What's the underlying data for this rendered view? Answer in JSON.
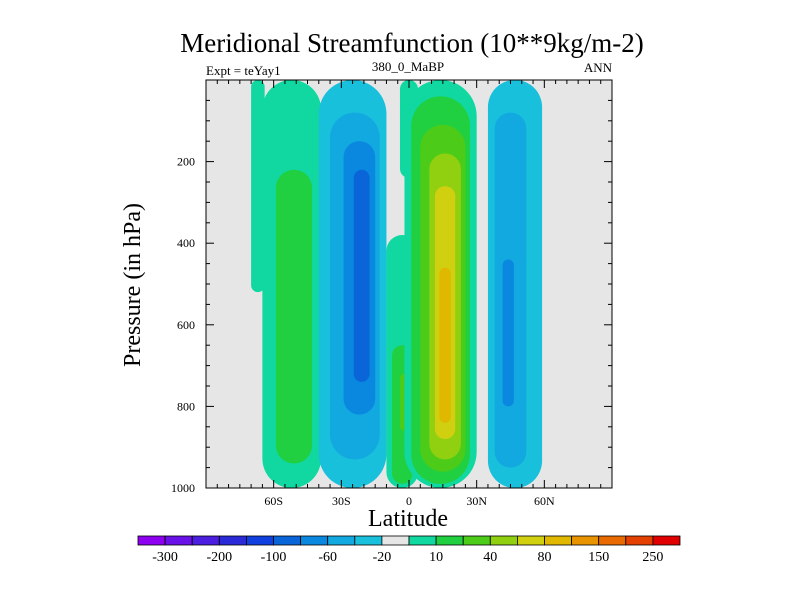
{
  "chart_data": {
    "type": "heatmap",
    "title": "Meridional Streamfunction (10**9kg/m-2)",
    "subtitle_left": "Expt = teYay1",
    "subtitle_center": "380_0_MaBP",
    "subtitle_right": "ANN",
    "xlabel": "Latitude",
    "ylabel": "Pressure (in hPa)",
    "xlim": [
      -90,
      90
    ],
    "ylim": [
      0,
      1000
    ],
    "y_inverted": true,
    "x_ticks": [
      {
        "value": -60,
        "label": "60S"
      },
      {
        "value": -30,
        "label": "30S"
      },
      {
        "value": 0,
        "label": "0"
      },
      {
        "value": 30,
        "label": "30N"
      },
      {
        "value": 60,
        "label": "60N"
      }
    ],
    "y_ticks": [
      {
        "value": 200,
        "label": "200"
      },
      {
        "value": 400,
        "label": "400"
      },
      {
        "value": 600,
        "label": "600"
      },
      {
        "value": 800,
        "label": "800"
      },
      {
        "value": 1000,
        "label": "1000"
      }
    ],
    "background_color": "#e6e6e6",
    "colorbar": {
      "colors": [
        "#8d00f0",
        "#6a10e8",
        "#4b1ee0",
        "#2a2ad8",
        "#1040e0",
        "#0a66d8",
        "#0a88e0",
        "#12a8e0",
        "#18c0dc",
        "#e6e6e6",
        "#10d8a0",
        "#20d040",
        "#4ccc18",
        "#90d010",
        "#d0d010",
        "#e0b800",
        "#e89400",
        "#e86a00",
        "#e44000",
        "#e00000"
      ],
      "labels": [
        {
          "boundary": 1,
          "label": "-300"
        },
        {
          "boundary": 3,
          "label": "-200"
        },
        {
          "boundary": 5,
          "label": "-100"
        },
        {
          "boundary": 7,
          "label": "-60"
        },
        {
          "boundary": 9,
          "label": "-20"
        },
        {
          "boundary": 11,
          "label": "10"
        },
        {
          "boundary": 13,
          "label": "40"
        },
        {
          "boundary": 15,
          "label": "80"
        },
        {
          "boundary": 17,
          "label": "150"
        },
        {
          "boundary": 19,
          "label": "250"
        }
      ]
    },
    "cells": [
      {
        "name": "far-south-outer",
        "level": 10,
        "lat": -67,
        "w": 6,
        "top": 0,
        "bot": 520,
        "color": "#10d8a0"
      },
      {
        "name": "south-ferrel-outer",
        "level": 10,
        "lat": -52,
        "w": 26,
        "top": 0,
        "bot": 1000,
        "color": "#10d8a0"
      },
      {
        "name": "south-ferrel-core",
        "level": 20,
        "lat": -51,
        "w": 16,
        "top": 220,
        "bot": 940,
        "color": "#20d040"
      },
      {
        "name": "south-hadley-outer",
        "level": -20,
        "lat": -25,
        "w": 30,
        "top": 0,
        "bot": 1000,
        "color": "#18c0dc"
      },
      {
        "name": "south-hadley-mid",
        "level": -40,
        "lat": -24,
        "w": 22,
        "top": 80,
        "bot": 930,
        "color": "#12a8e0"
      },
      {
        "name": "south-hadley-inner",
        "level": -60,
        "lat": -22,
        "w": 14,
        "top": 150,
        "bot": 820,
        "color": "#0a88e0"
      },
      {
        "name": "south-hadley-core",
        "level": -80,
        "lat": -21,
        "w": 7,
        "top": 220,
        "bot": 740,
        "color": "#0a66d8"
      },
      {
        "name": "equatorial-upper",
        "level": 10,
        "lat": 0,
        "w": 8,
        "top": 0,
        "bot": 240,
        "color": "#10d8a0"
      },
      {
        "name": "equatorial-lower",
        "level": 10,
        "lat": -3,
        "w": 14,
        "top": 380,
        "bot": 1000,
        "color": "#10d8a0"
      },
      {
        "name": "equatorial-lower-core",
        "level": 20,
        "lat": -3,
        "w": 9,
        "top": 650,
        "bot": 990,
        "color": "#20d040"
      },
      {
        "name": "equatorial-lower-peak",
        "level": 40,
        "lat": -2,
        "w": 4,
        "top": 720,
        "bot": 860,
        "color": "#4ccc18"
      },
      {
        "name": "north-hadley-outer",
        "level": 10,
        "lat": 14,
        "w": 32,
        "top": 0,
        "bot": 1000,
        "color": "#10d8a0"
      },
      {
        "name": "north-hadley-l20",
        "level": 20,
        "lat": 14,
        "w": 26,
        "top": 40,
        "bot": 990,
        "color": "#20d040"
      },
      {
        "name": "north-hadley-l40",
        "level": 40,
        "lat": 15,
        "w": 20,
        "top": 110,
        "bot": 960,
        "color": "#4ccc18"
      },
      {
        "name": "north-hadley-l60",
        "level": 60,
        "lat": 16,
        "w": 14,
        "top": 180,
        "bot": 930,
        "color": "#90d010"
      },
      {
        "name": "north-hadley-l80",
        "level": 80,
        "lat": 16,
        "w": 9,
        "top": 260,
        "bot": 880,
        "color": "#d0d010"
      },
      {
        "name": "north-hadley-l100",
        "level": 100,
        "lat": 16,
        "w": 5,
        "top": 460,
        "bot": 840,
        "color": "#e0b800"
      },
      {
        "name": "north-ferrel-outer",
        "level": -20,
        "lat": 47,
        "w": 24,
        "top": 0,
        "bot": 1000,
        "color": "#18c0dc"
      },
      {
        "name": "north-ferrel-core",
        "level": -40,
        "lat": 45,
        "w": 14,
        "top": 80,
        "bot": 950,
        "color": "#12a8e0"
      },
      {
        "name": "north-ferrel-inner",
        "level": -60,
        "lat": 44,
        "w": 5,
        "top": 440,
        "bot": 800,
        "color": "#0a88e0"
      }
    ]
  }
}
